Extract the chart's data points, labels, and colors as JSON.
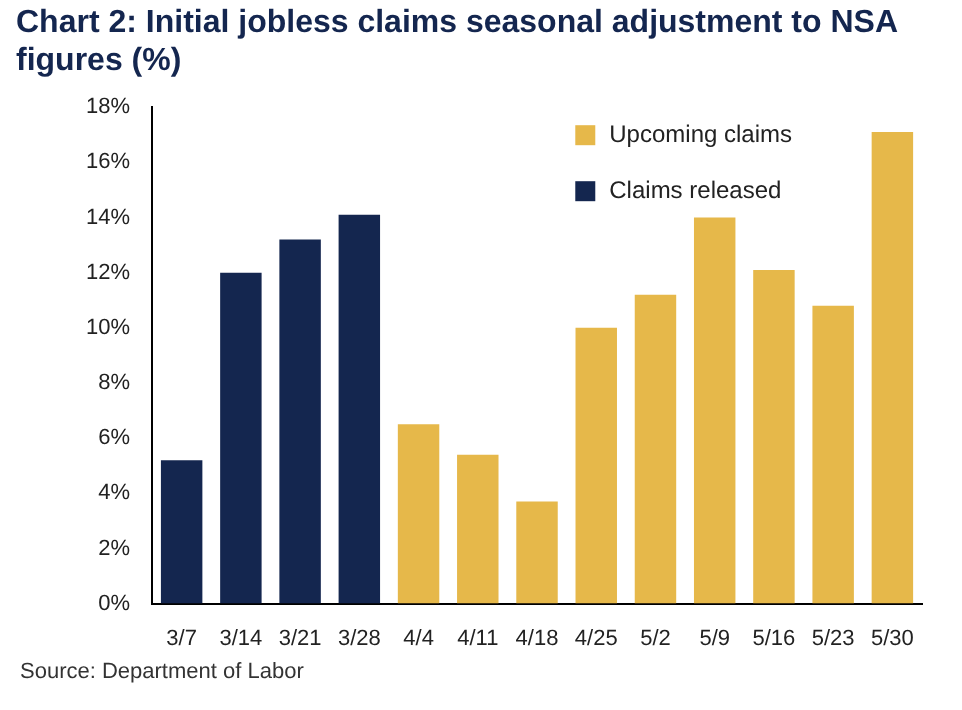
{
  "chart_data": {
    "type": "bar",
    "title": "Chart 2: Initial jobless claims seasonal adjustment to NSA figures (%)",
    "categories": [
      "3/7",
      "3/14",
      "3/21",
      "3/28",
      "4/4",
      "4/11",
      "4/18",
      "4/25",
      "5/2",
      "5/9",
      "5/16",
      "5/23",
      "5/30"
    ],
    "series": [
      {
        "name": "Upcoming claims",
        "color": "#e6b84a",
        "values": [
          null,
          null,
          null,
          null,
          6.5,
          5.4,
          3.7,
          10.0,
          11.2,
          14.0,
          12.1,
          10.8,
          17.1
        ]
      },
      {
        "name": "Claims released",
        "color": "#14264f",
        "values": [
          5.2,
          12.0,
          13.2,
          14.1,
          null,
          null,
          null,
          null,
          null,
          null,
          null,
          null,
          null
        ]
      }
    ],
    "ylim": [
      0,
      18
    ],
    "yticks": [
      {
        "value": 0,
        "label": "0%"
      },
      {
        "value": 2,
        "label": "2%"
      },
      {
        "value": 4,
        "label": "4%"
      },
      {
        "value": 6,
        "label": "6%"
      },
      {
        "value": 8,
        "label": "8%"
      },
      {
        "value": 10,
        "label": "10%"
      },
      {
        "value": 12,
        "label": "12%"
      },
      {
        "value": 14,
        "label": "14%"
      },
      {
        "value": 16,
        "label": "16%"
      },
      {
        "value": 18,
        "label": "18%"
      }
    ],
    "legend": "top right",
    "annotations": [
      "Source: Department of Labor"
    ]
  }
}
